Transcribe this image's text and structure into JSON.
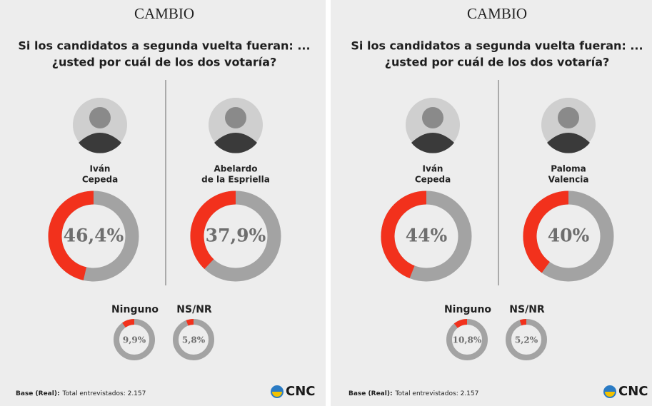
{
  "panels": [
    {
      "brand": "CAMBIO",
      "title": [
        "Si los candidatos a segunda vuelta fueran: ...",
        "¿usted por cuál de los dos votaría?"
      ],
      "base_label": "Base (Real):",
      "base_text": "Total entrevistados: 2.157",
      "logo": "CNC"
    },
    {
      "brand": "CAMBIO",
      "title": [
        "Si los candidatos a segunda vuelta fueran: ...",
        "¿usted por cuál de los dos votaría?"
      ],
      "base_label": "Base (Real):",
      "base_text": "Total entrevistados: 2.157",
      "logo": "CNC"
    }
  ],
  "chart_data": [
    {
      "type": "donut",
      "title": [
        "Iván",
        "Cepeda"
      ],
      "values": [
        46.4
      ],
      "value_labels": [
        "46,4%"
      ],
      "color": "#f2311c",
      "track_color": "#a3a3a3",
      "ylim": [
        0,
        100
      ]
    },
    {
      "type": "donut",
      "title": [
        "Abelardo",
        "de la Espriella"
      ],
      "values": [
        37.9
      ],
      "value_labels": [
        "37,9%"
      ],
      "color": "#f2311c",
      "track_color": "#a3a3a3",
      "ylim": [
        0,
        100
      ]
    },
    {
      "type": "donut",
      "title": [
        "Ninguno"
      ],
      "values": [
        9.9
      ],
      "value_labels": [
        "9,9%"
      ],
      "color": "#f2311c",
      "track_color": "#a3a3a3",
      "ylim": [
        0,
        100
      ]
    },
    {
      "type": "donut",
      "title": [
        "NS/NR"
      ],
      "values": [
        5.8
      ],
      "value_labels": [
        "5,8%"
      ],
      "color": "#f2311c",
      "track_color": "#a3a3a3",
      "ylim": [
        0,
        100
      ]
    },
    {
      "type": "donut",
      "title": [
        "Iván",
        "Cepeda"
      ],
      "values": [
        44
      ],
      "value_labels": [
        "44%"
      ],
      "color": "#f2311c",
      "track_color": "#a3a3a3",
      "ylim": [
        0,
        100
      ]
    },
    {
      "type": "donut",
      "title": [
        "Paloma",
        "Valencia"
      ],
      "values": [
        40
      ],
      "value_labels": [
        "40%"
      ],
      "color": "#f2311c",
      "track_color": "#a3a3a3",
      "ylim": [
        0,
        100
      ]
    },
    {
      "type": "donut",
      "title": [
        "Ninguno"
      ],
      "values": [
        10.8
      ],
      "value_labels": [
        "10,8%"
      ],
      "color": "#f2311c",
      "track_color": "#a3a3a3",
      "ylim": [
        0,
        100
      ]
    },
    {
      "type": "donut",
      "title": [
        "NS/NR"
      ],
      "values": [
        5.2
      ],
      "value_labels": [
        "5,2%"
      ],
      "color": "#f2311c",
      "track_color": "#a3a3a3",
      "ylim": [
        0,
        100
      ]
    }
  ]
}
